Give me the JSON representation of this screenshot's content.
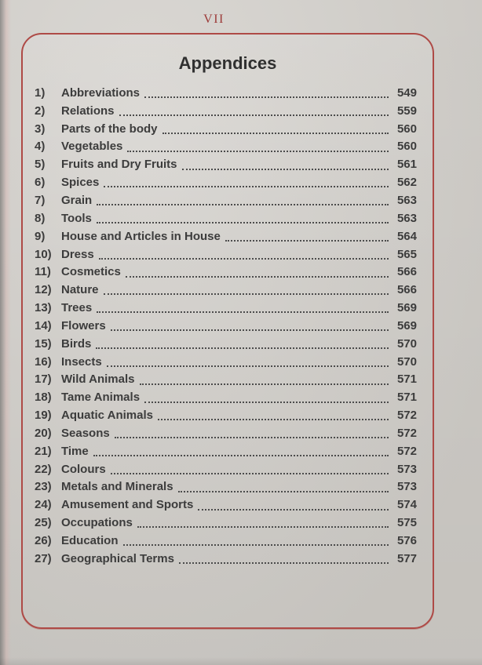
{
  "page": {
    "folio": "VII",
    "title": "Appendices",
    "items": [
      {
        "num": "1)",
        "label": "Abbreviations",
        "page": "549"
      },
      {
        "num": "2)",
        "label": "Relations",
        "page": "559"
      },
      {
        "num": "3)",
        "label": "Parts of the body",
        "page": "560"
      },
      {
        "num": "4)",
        "label": "Vegetables",
        "page": "560"
      },
      {
        "num": "5)",
        "label": "Fruits and Dry Fruits",
        "page": "561"
      },
      {
        "num": "6)",
        "label": "Spices",
        "page": "562"
      },
      {
        "num": "7)",
        "label": "Grain",
        "page": "563"
      },
      {
        "num": "8)",
        "label": "Tools",
        "page": "563"
      },
      {
        "num": "9)",
        "label": "House and Articles in House",
        "page": "564"
      },
      {
        "num": "10)",
        "label": "Dress",
        "page": "565"
      },
      {
        "num": "11)",
        "label": "Cosmetics",
        "page": "566"
      },
      {
        "num": "12)",
        "label": "Nature",
        "page": "566"
      },
      {
        "num": "13)",
        "label": "Trees",
        "page": "569"
      },
      {
        "num": "14)",
        "label": "Flowers",
        "page": "569"
      },
      {
        "num": "15)",
        "label": "Birds",
        "page": "570"
      },
      {
        "num": "16)",
        "label": "Insects",
        "page": "570"
      },
      {
        "num": "17)",
        "label": "Wild Animals",
        "page": "571"
      },
      {
        "num": "18)",
        "label": "Tame Animals",
        "page": "571"
      },
      {
        "num": "19)",
        "label": "Aquatic Animals",
        "page": "572"
      },
      {
        "num": "20)",
        "label": "Seasons",
        "page": "572"
      },
      {
        "num": "21)",
        "label": "Time",
        "page": "572"
      },
      {
        "num": "22)",
        "label": "Colours",
        "page": "573"
      },
      {
        "num": "23)",
        "label": "Metals and Minerals",
        "page": "573"
      },
      {
        "num": "24)",
        "label": "Amusement and Sports",
        "page": "574"
      },
      {
        "num": "25)",
        "label": "Occupations",
        "page": "575"
      },
      {
        "num": "26)",
        "label": "Education",
        "page": "576"
      },
      {
        "num": "27)",
        "label": "Geographical Terms",
        "page": "577"
      }
    ]
  },
  "colors": {
    "page_background": "#d6d3ce",
    "box_border": "#ae4a46",
    "folio_red": "#9c3a38",
    "text": "#3c3c3c",
    "dots": "#4c4c4c"
  }
}
